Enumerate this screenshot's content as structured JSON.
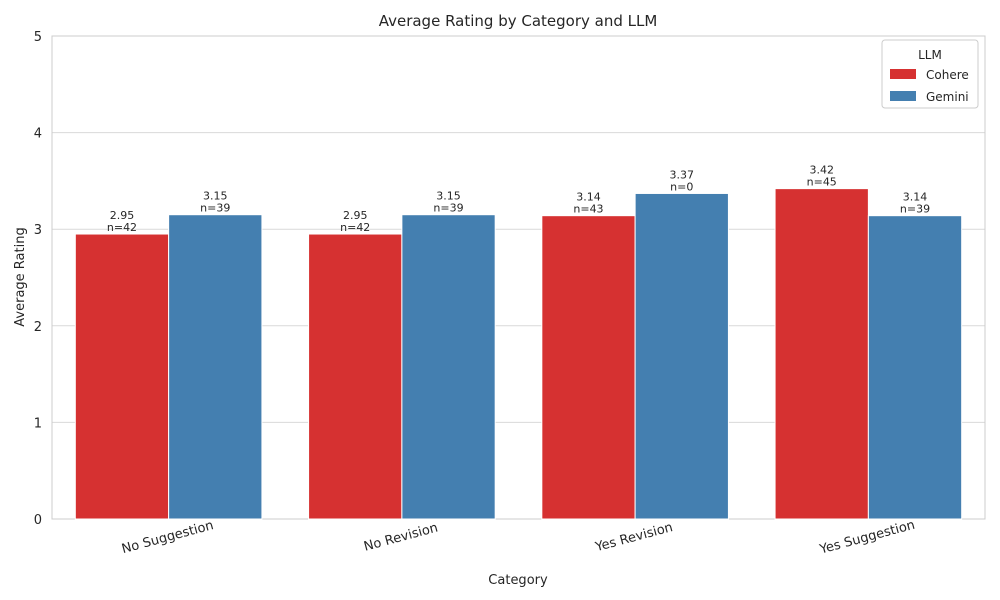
{
  "chart_data": {
    "type": "bar",
    "title": "Average Rating by Category and LLM",
    "xlabel": "Category",
    "ylabel": "Average Rating",
    "ylim": [
      0,
      5
    ],
    "yticks": [
      "0",
      "1",
      "2",
      "3",
      "4",
      "5"
    ],
    "grid": "y",
    "categories": [
      "No Suggestion",
      "No Revision",
      "Yes Revision",
      "Yes Suggestion"
    ],
    "series": [
      {
        "name": "Cohere",
        "color": "#d63131",
        "values": [
          2.95,
          2.95,
          3.14,
          3.42
        ],
        "labels": [
          "2.95",
          "2.95",
          "3.14",
          "3.42"
        ],
        "n_labels": [
          "n=42",
          "n=42",
          "n=43",
          "n=45"
        ]
      },
      {
        "name": "Gemini",
        "color": "#447fb0",
        "values": [
          3.15,
          3.15,
          3.37,
          3.14
        ],
        "labels": [
          "3.15",
          "3.15",
          "3.37",
          "3.14"
        ],
        "n_labels": [
          "n=39",
          "n=39",
          "n=0",
          "n=39"
        ]
      }
    ],
    "legend": {
      "title": "LLM",
      "position": "top-right"
    }
  }
}
